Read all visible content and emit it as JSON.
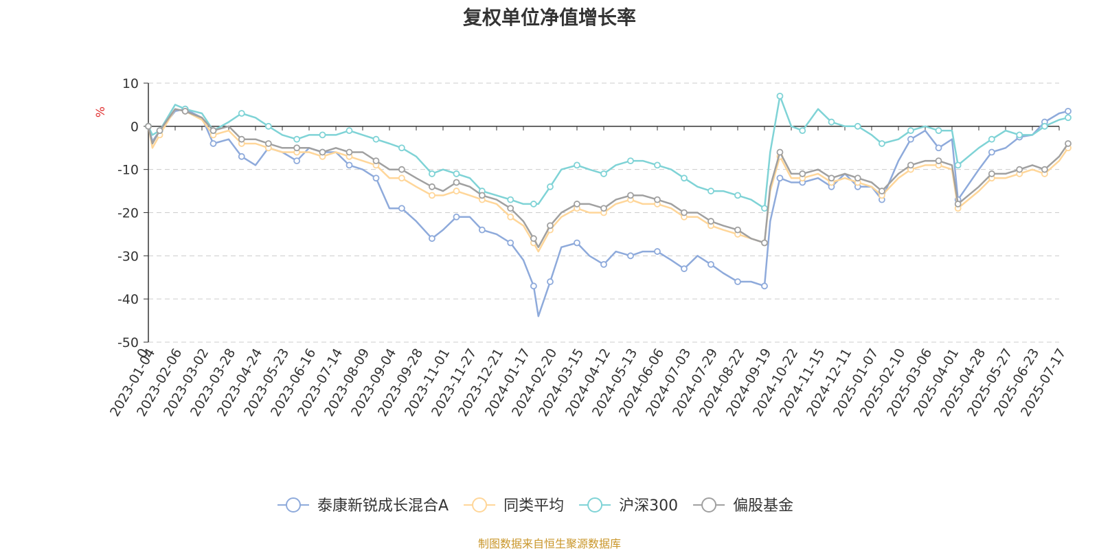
{
  "chart_data": {
    "type": "line",
    "title": "复权单位净值增长率",
    "ylabel": "%",
    "ylim": [
      -50,
      10
    ],
    "yticks": [
      10,
      0,
      -10,
      -20,
      -30,
      -40,
      -50
    ],
    "grid": true,
    "legend_position": "bottom",
    "x_first_tick": "0",
    "x_tick_labels": [
      "2023-01-04",
      "2023-02-06",
      "2023-03-02",
      "2023-03-28",
      "2023-04-24",
      "2023-05-23",
      "2023-06-16",
      "2023-07-14",
      "2023-08-09",
      "2023-09-04",
      "2023-09-28",
      "2023-11-01",
      "2023-11-27",
      "2023-12-21",
      "2024-01-17",
      "2024-02-20",
      "2024-03-15",
      "2024-04-12",
      "2024-05-13",
      "2024-06-06",
      "2024-07-03",
      "2024-07-29",
      "2024-08-22",
      "2024-09-19",
      "2024-10-22",
      "2024-11-15",
      "2024-12-11",
      "2025-01-07",
      "2025-02-10",
      "2025-03-06",
      "2025-04-01",
      "2025-04-28",
      "2025-05-27",
      "2025-06-23",
      "2025-07-17"
    ],
    "x": [
      "2023-01-04",
      "2023-01-09",
      "2023-01-18",
      "2023-02-06",
      "2023-02-15",
      "2023-03-02",
      "2023-03-13",
      "2023-03-28",
      "2023-04-10",
      "2023-04-24",
      "2023-05-08",
      "2023-05-23",
      "2023-06-05",
      "2023-06-16",
      "2023-06-30",
      "2023-07-14",
      "2023-07-27",
      "2023-08-09",
      "2023-08-22",
      "2023-09-04",
      "2023-09-15",
      "2023-09-28",
      "2023-10-18",
      "2023-11-01",
      "2023-11-14",
      "2023-11-27",
      "2023-12-08",
      "2023-12-21",
      "2024-01-04",
      "2024-01-17",
      "2024-01-30",
      "2024-02-05",
      "2024-02-20",
      "2024-03-01",
      "2024-03-15",
      "2024-03-28",
      "2024-04-12",
      "2024-04-26",
      "2024-05-13",
      "2024-05-24",
      "2024-06-06",
      "2024-06-20",
      "2024-07-03",
      "2024-07-16",
      "2024-07-29",
      "2024-08-09",
      "2024-08-22",
      "2024-09-05",
      "2024-09-19",
      "2024-09-26",
      "2024-10-08",
      "2024-10-22",
      "2024-11-01",
      "2024-11-15",
      "2024-11-28",
      "2024-12-11",
      "2024-12-24",
      "2025-01-07",
      "2025-01-20",
      "2025-02-10",
      "2025-02-21",
      "2025-03-06",
      "2025-03-19",
      "2025-04-01",
      "2025-04-07",
      "2025-04-28",
      "2025-05-12",
      "2025-05-27",
      "2025-06-10",
      "2025-06-23",
      "2025-07-04",
      "2025-07-17",
      "2025-07-25"
    ],
    "series": [
      {
        "name": "泰康新锐成长混合A",
        "color": "#8eaadb",
        "values": [
          0,
          -3.5,
          -1,
          3.5,
          4,
          2,
          -4,
          -3,
          -7,
          -9,
          -5,
          -6,
          -8,
          -5,
          -6,
          -6,
          -9,
          -10,
          -12,
          -19,
          -19,
          -22,
          -26,
          -24,
          -21,
          -21,
          -24,
          -25,
          -27,
          -31,
          -37,
          -44,
          -36,
          -28,
          -27,
          -30,
          -32,
          -29,
          -30,
          -29,
          -29,
          -31,
          -33,
          -30,
          -32,
          -34,
          -36,
          -36,
          -37,
          -22,
          -12,
          -13,
          -13,
          -12,
          -14,
          -11,
          -14,
          -14,
          -17,
          -8,
          -3,
          -1,
          -5,
          -3,
          -17,
          -10,
          -6,
          -5,
          -2.5,
          -2,
          1,
          3,
          3.5
        ]
      },
      {
        "name": "同类平均",
        "color": "#ffd699",
        "values": [
          0,
          -5,
          -2,
          4,
          3.5,
          1.5,
          -2,
          -1,
          -4,
          -4,
          -5,
          -6,
          -6,
          -6,
          -7,
          -6,
          -7,
          -8,
          -9,
          -12,
          -12,
          -14,
          -16,
          -16,
          -15,
          -16,
          -17,
          -18,
          -21,
          -23,
          -27,
          -29,
          -24,
          -21,
          -19,
          -20,
          -20,
          -18,
          -17,
          -18,
          -18,
          -19,
          -21,
          -21,
          -23,
          -24,
          -25,
          -26,
          -27,
          -15,
          -7,
          -12,
          -12,
          -11,
          -13,
          -12,
          -13,
          -14,
          -16,
          -12,
          -10,
          -9,
          -9,
          -10,
          -19,
          -15,
          -12,
          -12,
          -11,
          -10,
          -11,
          -8,
          -5
        ]
      },
      {
        "name": "沪深300",
        "color": "#7fd3d6",
        "values": [
          0,
          -2,
          -1,
          5,
          4,
          3,
          -1,
          1,
          3,
          2,
          0,
          -2,
          -3,
          -2,
          -2,
          -2,
          -1,
          -2,
          -3,
          -4,
          -5,
          -7,
          -11,
          -10,
          -11,
          -12,
          -15,
          -16,
          -17,
          -18,
          -18,
          -18,
          -14,
          -10,
          -9,
          -10,
          -11,
          -9,
          -8,
          -8,
          -9,
          -10,
          -12,
          -14,
          -15,
          -15,
          -16,
          -17,
          -19,
          -6,
          7,
          0,
          -1,
          4,
          1,
          0,
          0,
          -2,
          -4,
          -3,
          -1,
          0,
          -1,
          -1,
          -9,
          -5,
          -3,
          -1,
          -2,
          -2,
          0,
          1.5,
          2
        ]
      },
      {
        "name": "偏股基金",
        "color": "#a0a0a0",
        "values": [
          0,
          -4,
          -1,
          4,
          3.5,
          2,
          -1,
          0,
          -3,
          -3,
          -4,
          -5,
          -5,
          -5,
          -6,
          -5,
          -6,
          -6,
          -8,
          -10,
          -10,
          -12,
          -14,
          -15,
          -13,
          -14,
          -16,
          -17,
          -19,
          -22,
          -26,
          -28,
          -23,
          -20,
          -18,
          -18,
          -19,
          -17,
          -16,
          -16,
          -17,
          -18,
          -20,
          -20,
          -22,
          -23,
          -24,
          -26,
          -27,
          -14,
          -6,
          -11,
          -11,
          -10,
          -12,
          -11,
          -12,
          -13,
          -15,
          -11,
          -9,
          -8,
          -8,
          -9,
          -18,
          -14,
          -11,
          -11,
          -10,
          -9,
          -10,
          -7,
          -4
        ]
      }
    ]
  },
  "source_note": "制图数据来自恒生聚源数据库"
}
